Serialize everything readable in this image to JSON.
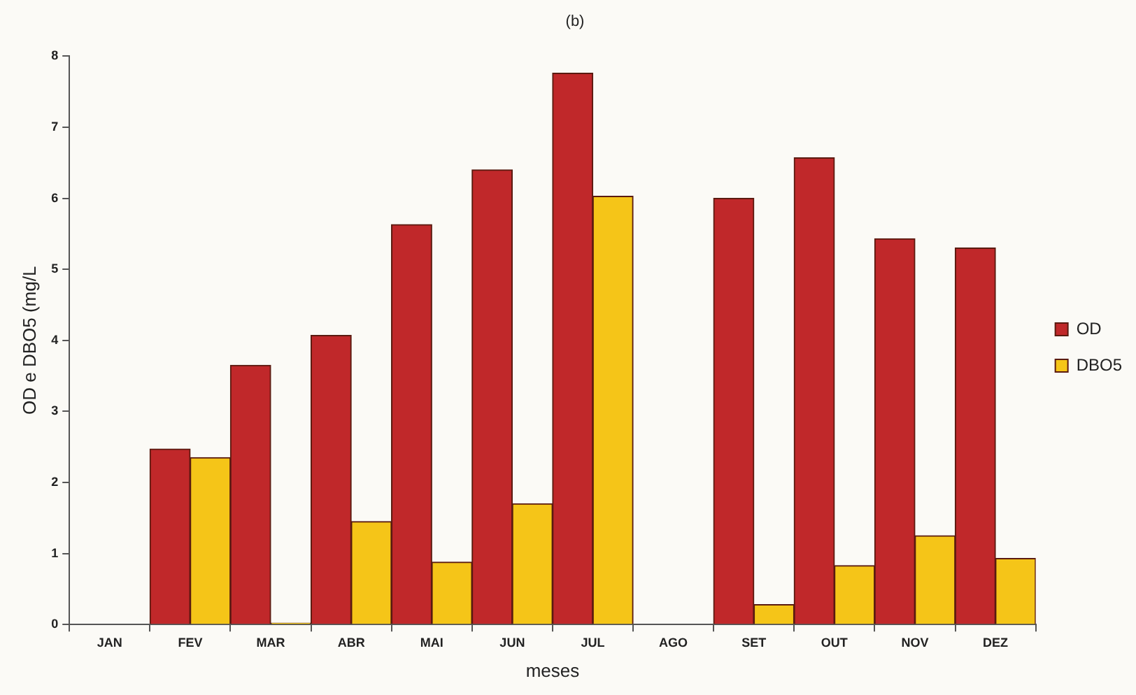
{
  "chart_data": {
    "type": "bar",
    "title": "(b)",
    "xlabel": "meses",
    "ylabel": "OD e DBO5 (mg/L",
    "categories": [
      "JAN",
      "FEV",
      "MAR",
      "ABR",
      "MAI",
      "JUN",
      "JUL",
      "AGO",
      "SET",
      "OUT",
      "NOV",
      "DEZ"
    ],
    "series": [
      {
        "name": "OD",
        "color": "#c0282a",
        "values": [
          null,
          2.47,
          3.65,
          4.07,
          5.63,
          6.4,
          7.76,
          null,
          6.0,
          6.57,
          5.43,
          5.3
        ]
      },
      {
        "name": "DBO5",
        "color": "#f5c518",
        "values": [
          null,
          2.35,
          0.02,
          1.45,
          0.88,
          1.7,
          6.03,
          null,
          0.28,
          0.83,
          1.25,
          0.93
        ]
      }
    ],
    "ylim": [
      0,
      8
    ],
    "yticks": [
      0,
      1,
      2,
      3,
      4,
      5,
      6,
      7,
      8
    ],
    "grid": false,
    "legend": "right"
  }
}
